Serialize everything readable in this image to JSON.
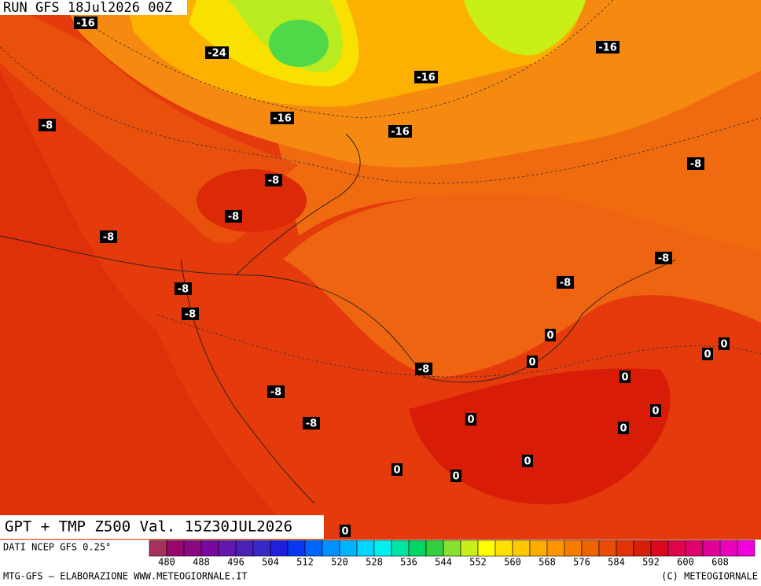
{
  "header": {
    "run": "RUN GFS 18Jul2026 00Z"
  },
  "map": {
    "title": "GPT + TMP Z500 Val. 15Z30JUL2026",
    "labels": [
      "-16",
      "-24",
      "-16",
      "-16",
      "-16",
      "-16",
      "-8",
      "-8",
      "-8",
      "-8",
      "-8",
      "-8",
      "-8",
      "-8",
      "-8",
      "0",
      "0",
      "0",
      "0",
      "-8",
      "0",
      "-8",
      "0",
      "-8",
      "0",
      "0",
      "0",
      "0",
      "0",
      "0"
    ]
  },
  "legend": {
    "source": "DATI NCEP GFS 0.25°",
    "ticks": [
      480,
      488,
      496,
      504,
      512,
      520,
      528,
      536,
      544,
      552,
      560,
      568,
      576,
      584,
      592,
      600,
      608
    ],
    "colors": [
      "#a8305c",
      "#98086c",
      "#8a0884",
      "#7808a0",
      "#6418ac",
      "#4c20b4",
      "#3828c8",
      "#2020dc",
      "#0838f4",
      "#0064ff",
      "#0090ff",
      "#00b4ff",
      "#00d4ff",
      "#00f0f0",
      "#00e4a4",
      "#00d464",
      "#30d040",
      "#88e030",
      "#c8f018",
      "#ffff00",
      "#ffe000",
      "#ffc800",
      "#ffac00",
      "#ff9400",
      "#f87c00",
      "#f06400",
      "#e84c08",
      "#e03408",
      "#d82008",
      "#d80820",
      "#e00448",
      "#e00070",
      "#e00098",
      "#e800bc",
      "#f000dc"
    ]
  },
  "footer": {
    "left": "MTG-GFS – ELABORAZIONE WWW.METEOGIORNALE.IT",
    "right": "(C) METEOGIORNALE"
  }
}
